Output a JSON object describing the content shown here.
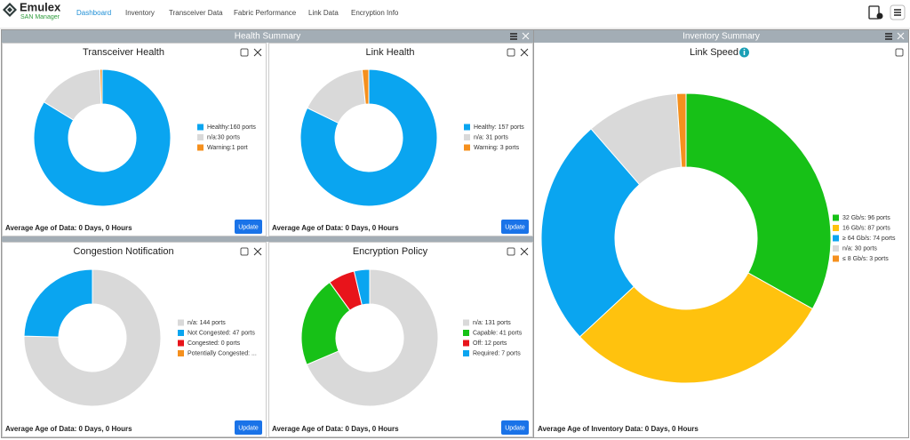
{
  "header": {
    "logo_title": "Emulex",
    "logo_subtitle": "SAN Manager",
    "nav": [
      "Dashboard",
      "Inventory",
      "Transceiver Data",
      "Fabric Performance",
      "Link Data",
      "Encryption Info"
    ]
  },
  "panels": {
    "health": "Health Summary",
    "inventory": "Inventory Summary"
  },
  "chart_data": [
    {
      "type": "pie",
      "title": "Transceiver Health",
      "values": [
        160,
        30,
        1
      ],
      "value_labels": [
        "Healthy:160 ports",
        "n/a:30 ports",
        "Warning:1 port"
      ],
      "colors": [
        "#0aa5f0",
        "#d9d9d9",
        "#f5901e"
      ],
      "footer": "Average Age of Data: 0 Days, 0 Hours",
      "button": "Update"
    },
    {
      "type": "pie",
      "title": "Link Health",
      "values": [
        157,
        31,
        3
      ],
      "value_labels": [
        "Healthy: 157 ports",
        "n/a: 31 ports",
        "Warning: 3 ports"
      ],
      "colors": [
        "#0aa5f0",
        "#d9d9d9",
        "#f5901e"
      ],
      "footer": "Average Age of Data: 0 Days, 0 Hours",
      "button": "Update"
    },
    {
      "type": "pie",
      "title": "Congestion Notification",
      "values": [
        144,
        47,
        0,
        0
      ],
      "value_labels": [
        "n/a: 144 ports",
        "Not Congested: 47 ports",
        "Congested: 0 ports",
        "Potentially Congested: ..."
      ],
      "colors": [
        "#d9d9d9",
        "#0aa5f0",
        "#e8141b",
        "#f5901e"
      ],
      "footer": "Average Age of Data: 0 Days, 0 Hours",
      "button": "Update"
    },
    {
      "type": "pie",
      "title": "Encryption Policy",
      "values": [
        131,
        41,
        12,
        7
      ],
      "value_labels": [
        "n/a: 131 ports",
        "Capable: 41 ports",
        "Off: 12 ports",
        "Required: 7 ports"
      ],
      "colors": [
        "#d9d9d9",
        "#17c117",
        "#e8141b",
        "#0aa5f0"
      ],
      "footer": "Average Age of Data: 0 Days, 0 Hours",
      "button": "Update"
    },
    {
      "type": "pie",
      "title": "Link Speed",
      "values": [
        96,
        87,
        74,
        30,
        3
      ],
      "value_labels": [
        "32 Gb/s: 96 ports",
        "16 Gb/s: 87 ports",
        "≥ 64 Gb/s: 74 ports",
        "n/a: 30 ports",
        "≤ 8 Gb/s: 3 ports"
      ],
      "colors": [
        "#17c117",
        "#ffc20e",
        "#0aa5f0",
        "#d9d9d9",
        "#f5901e"
      ],
      "footer": "Average Age of Inventory Data: 0 Days, 0 Hours"
    }
  ]
}
